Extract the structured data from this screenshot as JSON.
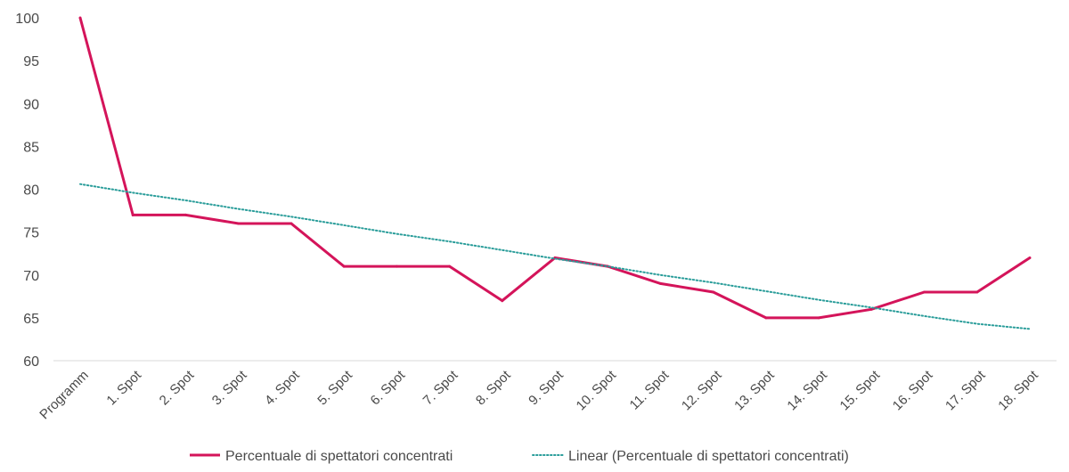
{
  "chart_data": {
    "type": "line",
    "title": "",
    "xlabel": "",
    "ylabel": "",
    "ylim": [
      60,
      100
    ],
    "yticks": [
      60,
      65,
      70,
      75,
      80,
      85,
      90,
      95,
      100
    ],
    "grid": false,
    "legend_position": "bottom",
    "categories": [
      "Programm",
      "1. Spot",
      "2. Spot",
      "3. Spot",
      "4. Spot",
      "5. Spot",
      "6. Spot",
      "7. Spot",
      "8. Spot",
      "9. Spot",
      "10. Spot",
      "11. Spot",
      "12. Spot",
      "13. Spot",
      "14. Spot",
      "15. Spot",
      "16. Spot",
      "17. Spot",
      "18. Spot"
    ],
    "series": [
      {
        "name": "Percentuale di spettatori concentrati",
        "style": "solid",
        "color": "#d4145a",
        "values": [
          100,
          77,
          77,
          76,
          76,
          71,
          71,
          71,
          67,
          72,
          71,
          69,
          68,
          65,
          65,
          66,
          68,
          68,
          72
        ]
      },
      {
        "name": "Linear (Percentuale di spettatori concentrati)",
        "style": "dotted",
        "color": "#2a9d9a",
        "values": [
          80.6,
          79.6,
          78.7,
          77.7,
          76.8,
          75.8,
          74.8,
          73.9,
          72.9,
          71.9,
          71.0,
          70.0,
          69.1,
          68.1,
          67.1,
          66.2,
          65.2,
          64.3,
          63.7
        ]
      }
    ]
  }
}
